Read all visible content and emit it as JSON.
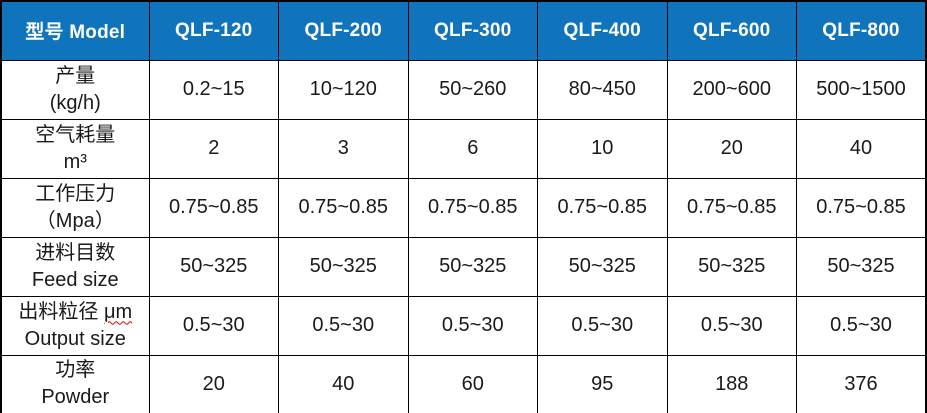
{
  "table": {
    "header": {
      "model_label": "型号 Model",
      "columns": [
        "QLF-120",
        "QLF-200",
        "QLF-300",
        "QLF-400",
        "QLF-600",
        "QLF-800"
      ]
    },
    "rows": [
      {
        "zh": "产量",
        "unit": "",
        "sub": "(kg/h)",
        "values": [
          "0.2~15",
          "10~120",
          "50~260",
          "80~450",
          "200~600",
          "500~1500"
        ]
      },
      {
        "zh": "空气耗量",
        "unit": "",
        "sub": "m³",
        "values": [
          "2",
          "3",
          "6",
          "10",
          "20",
          "40"
        ]
      },
      {
        "zh": "工作压力",
        "unit": "",
        "sub": "（Mpa）",
        "values": [
          "0.75~0.85",
          "0.75~0.85",
          "0.75~0.85",
          "0.75~0.85",
          "0.75~0.85",
          "0.75~0.85"
        ]
      },
      {
        "zh": "进料目数",
        "unit": "",
        "sub": "Feed size",
        "values": [
          "50~325",
          "50~325",
          "50~325",
          "50~325",
          "50~325",
          "50~325"
        ]
      },
      {
        "zh": "出料粒径",
        "unit": "μm",
        "sub": "Output size",
        "values": [
          "0.5~30",
          "0.5~30",
          "0.5~30",
          "0.5~30",
          "0.5~30",
          "0.5~30"
        ]
      },
      {
        "zh": "功率",
        "unit": "",
        "sub": "Powder",
        "values": [
          "20",
          "40",
          "60",
          "95",
          "188",
          "376"
        ]
      }
    ]
  },
  "colors": {
    "header_bg": "#0f74bc",
    "header_text": "#ffffff",
    "border": "#000000",
    "body_text": "#1a1a1a",
    "spellcheck_underline": "#dd0000"
  },
  "chart_data": {
    "type": "table",
    "title": "",
    "columns": [
      "型号 Model",
      "QLF-120",
      "QLF-200",
      "QLF-300",
      "QLF-400",
      "QLF-600",
      "QLF-800"
    ],
    "rows": [
      [
        "产量 (kg/h)",
        "0.2~15",
        "10~120",
        "50~260",
        "80~450",
        "200~600",
        "500~1500"
      ],
      [
        "空气耗量 m³",
        "2",
        "3",
        "6",
        "10",
        "20",
        "40"
      ],
      [
        "工作压力 （Mpa）",
        "0.75~0.85",
        "0.75~0.85",
        "0.75~0.85",
        "0.75~0.85",
        "0.75~0.85",
        "0.75~0.85"
      ],
      [
        "进料目数 Feed size",
        "50~325",
        "50~325",
        "50~325",
        "50~325",
        "50~325",
        "50~325"
      ],
      [
        "出料粒径 μm Output size",
        "0.5~30",
        "0.5~30",
        "0.5~30",
        "0.5~30",
        "0.5~30",
        "0.5~30"
      ],
      [
        "功率 Powder",
        "20",
        "40",
        "60",
        "95",
        "188",
        "376"
      ]
    ]
  }
}
